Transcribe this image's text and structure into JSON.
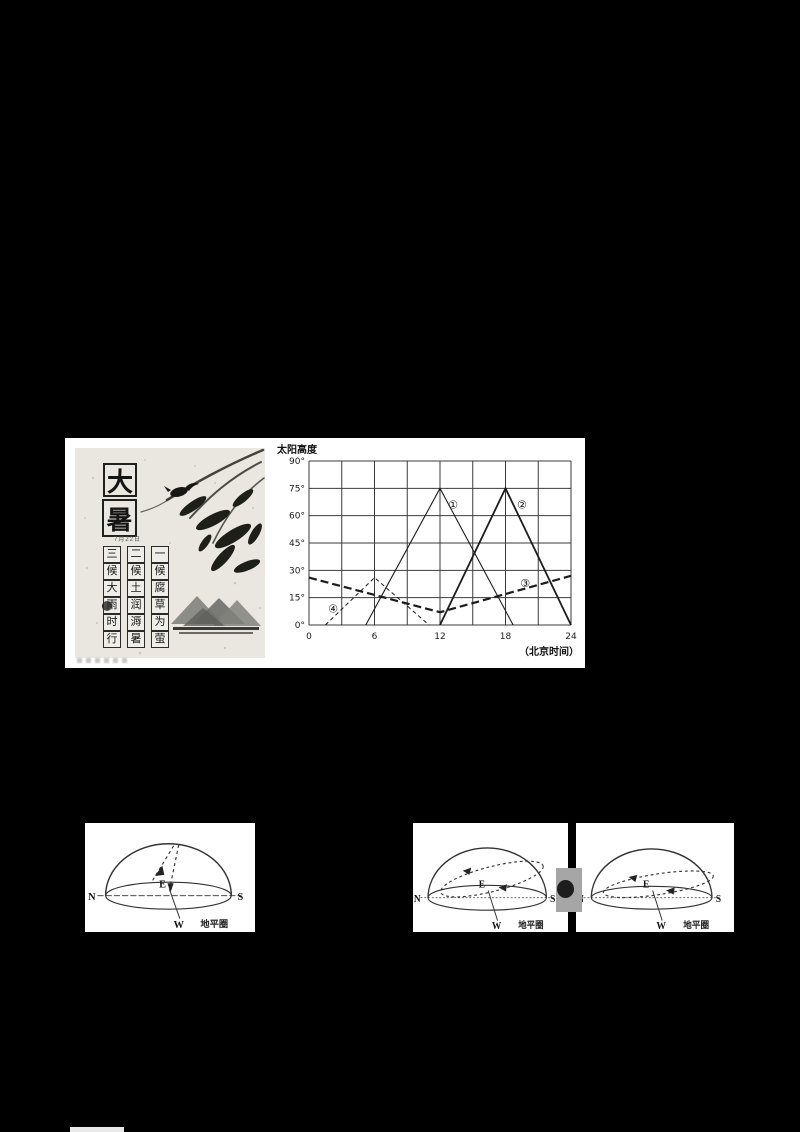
{
  "poster": {
    "title_chars": [
      "大",
      "暑"
    ],
    "date_label": "7月22日",
    "pentad_columns": [
      "一候腐草为萤",
      "二候土润溽暑",
      "三候大雨时行"
    ]
  },
  "chart_data": {
    "type": "line",
    "title": "",
    "ylabel": "太阳高度",
    "xlabel": "（北京时间）",
    "xlim": [
      0,
      24
    ],
    "ylim": [
      0,
      90
    ],
    "grid": {
      "on": true,
      "x_step": 3,
      "y_step": 15
    },
    "x_ticks": [
      0,
      6,
      12,
      18,
      24
    ],
    "y_ticks": [
      "0°",
      "15°",
      "30°",
      "45°",
      "60°",
      "75°",
      "90°"
    ],
    "legend_position": "inline-labels",
    "series": [
      {
        "name": "①",
        "style": "solid-thin",
        "points": [
          [
            5.2,
            0
          ],
          [
            12,
            75
          ],
          [
            18.7,
            0
          ]
        ],
        "label_at": [
          13.2,
          66
        ]
      },
      {
        "name": "②",
        "style": "solid-bold",
        "points": [
          [
            12,
            0
          ],
          [
            18,
            75
          ],
          [
            24,
            0
          ]
        ],
        "label_at": [
          19.5,
          66
        ]
      },
      {
        "name": "③",
        "style": "dashed-bold",
        "points": [
          [
            0,
            26
          ],
          [
            12,
            7
          ],
          [
            24,
            27
          ]
        ],
        "label_at": [
          19.8,
          23
        ]
      },
      {
        "name": "④",
        "style": "dashed-thin",
        "points": [
          [
            1.5,
            0
          ],
          [
            6,
            26
          ],
          [
            11,
            0
          ]
        ],
        "label_at": [
          2.2,
          9
        ]
      }
    ]
  },
  "hemispheres": {
    "labels": {
      "n": "N",
      "s": "S",
      "e": "E",
      "w": "W"
    },
    "caption": "地平圈"
  }
}
